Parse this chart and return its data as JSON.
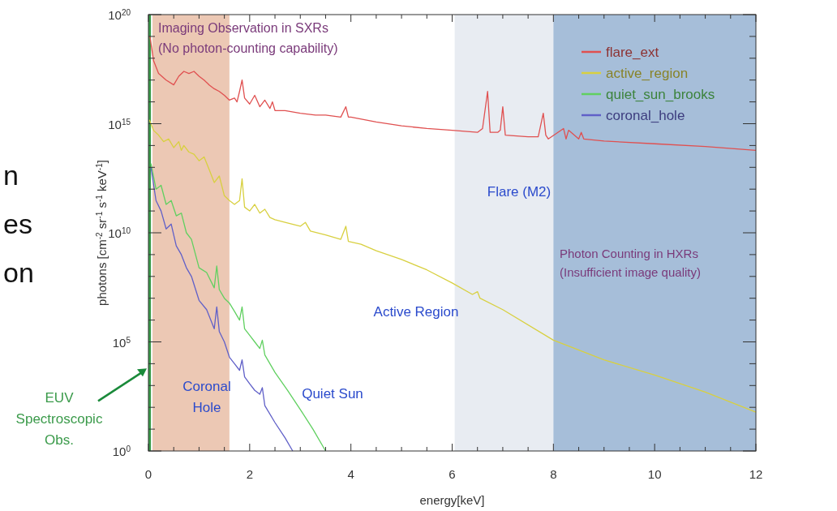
{
  "chart_data": {
    "type": "line",
    "xlabel": "energy[keV]",
    "ylabel": "photons [cm$^{-2}$ sr$^{-1}$ s$^{-1}$ keV$^{-1}$]",
    "log": "y",
    "xlim": [
      0,
      12
    ],
    "ylim": [
      1,
      1e+20
    ],
    "xticks": [
      0,
      {
        "value": 0.5,
        "label": null
      },
      2,
      {
        "value": 2.5,
        "label": null
      },
      {
        "value": 1,
        "label": null
      },
      {
        "value": 1.5,
        "label": null
      },
      {
        "value": 3,
        "label": null
      },
      {
        "value": 3.5,
        "label": null
      },
      4,
      {
        "value": 4.5,
        "label": null
      },
      {
        "value": 5,
        "label": null
      },
      {
        "value": 5.5,
        "label": null
      },
      6,
      {
        "value": 6.5,
        "label": null
      },
      {
        "value": 7,
        "label": null
      },
      {
        "value": 7.5,
        "label": null
      },
      8,
      {
        "value": 8.5,
        "label": null
      },
      {
        "value": 9,
        "label": null
      },
      {
        "value": 9.5,
        "label": null
      },
      10,
      {
        "value": 10.5,
        "label": null
      },
      {
        "value": 11,
        "label": null
      },
      {
        "value": 11.5,
        "label": null
      },
      12
    ],
    "yticks": [
      {
        "value": 1,
        "label": "10$^{0}$"
      },
      {
        "value": 10,
        "label": null
      },
      {
        "value": 100,
        "label": null
      },
      {
        "value": 1000,
        "label": null
      },
      {
        "value": 10000,
        "label": null
      },
      {
        "value": 100000.0,
        "label": "10$^{5}$"
      },
      {
        "value": 1000000.0,
        "label": null
      },
      {
        "value": 10000000.0,
        "label": null
      },
      {
        "value": 100000000.0,
        "label": null
      },
      {
        "value": 1000000000.0,
        "label": null
      },
      {
        "value": 10000000000.0,
        "label": "10$^{10}$"
      },
      {
        "value": 100000000000.0,
        "label": null
      },
      {
        "value": 1000000000000.0,
        "label": null
      },
      {
        "value": 10000000000000.0,
        "label": null
      },
      {
        "value": 100000000000000.0,
        "label": null
      },
      {
        "value": 1000000000000000.0,
        "label": "10$^{15}$"
      },
      {
        "value": 1e+16,
        "label": null
      },
      {
        "value": 1e+17,
        "label": null
      },
      {
        "value": 1e+18,
        "label": null
      },
      {
        "value": 1e+19,
        "label": null
      },
      {
        "value": 1e+20,
        "label": "10$^{20}$"
      }
    ],
    "grid": false,
    "legend": "top right",
    "marker": "none",
    "line_style": "solid",
    "bands": [
      {
        "axis": "x",
        "from": 0,
        "to": 0.05,
        "color": "#3a9a4a"
      },
      {
        "axis": "x",
        "from": 0.08,
        "to": 1.6,
        "color": "#ecc8b4"
      },
      {
        "axis": "x",
        "from": 6.05,
        "to": 8,
        "color": "#e8ecf2"
      },
      {
        "axis": "x",
        "from": 8,
        "to": 12,
        "color": "#a6bed9"
      }
    ],
    "series": [
      {
        "name": "flare_ext",
        "color": "#e05050",
        "x": [
          0.03,
          0.1,
          0.2,
          0.35,
          0.5,
          0.6,
          0.7,
          0.8,
          0.9,
          1.0,
          1.1,
          1.2,
          1.3,
          1.4,
          1.5,
          1.6,
          1.7,
          1.75,
          1.8,
          1.85,
          1.9,
          2.0,
          2.1,
          2.2,
          2.3,
          2.4,
          2.45,
          2.5,
          2.7,
          3.0,
          3.3,
          3.5,
          3.8,
          3.9,
          3.95,
          4.0,
          4.5,
          5.0,
          5.5,
          6.0,
          6.5,
          6.6,
          6.7,
          6.75,
          6.9,
          6.95,
          7.0,
          7.05,
          7.5,
          7.7,
          7.8,
          7.85,
          7.9,
          8.2,
          8.25,
          8.3,
          8.5,
          8.55,
          8.6,
          9.0,
          10.0,
          11.0,
          12.0
        ],
        "values": [
          1e+19,
          8e+17,
          2e+17,
          1e+17,
          6e+16,
          1.5e+17,
          2.5e+17,
          2e+17,
          2.5e+17,
          1.5e+17,
          1e+17,
          6e+16,
          4e+16,
          3e+16,
          2e+16,
          1.2e+16,
          1.5e+16,
          1e+16,
          3e+16,
          1e+17,
          1.5e+16,
          8000000000000000.0,
          2e+16,
          6000000000000000.0,
          1.2e+16,
          5000000000000000.0,
          1e+16,
          4000000000000000.0,
          4000000000000000.0,
          3000000000000000.0,
          2500000000000000.0,
          2500000000000000.0,
          2000000000000000.0,
          6000000000000000.0,
          2000000000000000.0,
          2000000000000000.0,
          1200000000000000.0,
          800000000000000.0,
          600000000000000.0,
          500000000000000.0,
          400000000000000.0,
          600000000000000.0,
          3e+16,
          400000000000000.0,
          400000000000000.0,
          500000000000000.0,
          6000000000000000.0,
          300000000000000.0,
          250000000000000.0,
          250000000000000.0,
          3000000000000000.0,
          300000000000000.0,
          200000000000000.0,
          600000000000000.0,
          200000000000000.0,
          500000000000000.0,
          200000000000000.0,
          400000000000000.0,
          200000000000000.0,
          160000000000000.0,
          120000000000000.0,
          90000000000000.0,
          60000000000000.0
        ]
      },
      {
        "name": "active_region",
        "color": "#d8d040",
        "x": [
          0.02,
          0.1,
          0.2,
          0.3,
          0.4,
          0.5,
          0.6,
          0.65,
          0.7,
          0.8,
          0.9,
          1.0,
          1.1,
          1.2,
          1.3,
          1.4,
          1.5,
          1.6,
          1.7,
          1.8,
          1.85,
          1.9,
          2.0,
          2.1,
          2.2,
          2.3,
          2.4,
          2.5,
          2.7,
          3.0,
          3.1,
          3.2,
          3.5,
          3.8,
          3.9,
          3.95,
          4.2,
          4.5,
          5.0,
          5.5,
          6.0,
          6.4,
          6.5,
          6.55,
          7.0,
          8.0,
          9.0,
          10.0,
          11.0,
          12.0
        ],
        "values": [
          1500000000000000.0,
          500000000000000.0,
          300000000000000.0,
          150000000000000.0,
          200000000000000.0,
          80000000000000.0,
          150000000000000.0,
          60000000000000.0,
          100000000000000.0,
          50000000000000.0,
          40000000000000.0,
          20000000000000.0,
          30000000000000.0,
          8000000000000.0,
          2000000000000.0,
          4000000000000.0,
          500000000000.0,
          300000000000.0,
          200000000000.0,
          300000000000.0,
          3000000000000.0,
          150000000000.0,
          100000000000.0,
          200000000000.0,
          80000000000.0,
          120000000000.0,
          50000000000.0,
          40000000000.0,
          30000000000.0,
          20000000000.0,
          30000000000.0,
          12000000000.0,
          8000000000.0,
          5000000000.0,
          20000000000.0,
          4000000000.0,
          3000000000.0,
          1500000000.0,
          600000000.0,
          200000000.0,
          50000000.0,
          15000000.0,
          20000000.0,
          10000000.0,
          3000000.0,
          120000.0,
          15000.0,
          3000.0,
          500.0,
          60.0
        ]
      },
      {
        "name": "quiet_sun_brooks",
        "color": "#60d060",
        "x": [
          0.05,
          0.15,
          0.25,
          0.35,
          0.45,
          0.55,
          0.65,
          0.75,
          0.85,
          1.0,
          1.15,
          1.3,
          1.35,
          1.4,
          1.5,
          1.6,
          1.7,
          1.8,
          1.85,
          1.9,
          2.0,
          2.1,
          2.2,
          2.25,
          2.3,
          2.5,
          2.75,
          3.0,
          3.25,
          3.5
        ],
        "values": [
          15000000000000.0,
          1000000000000.0,
          1500000000000.0,
          200000000000.0,
          300000000000.0,
          60000000000.0,
          80000000000.0,
          10000000000.0,
          5000000000.0,
          250000000.0,
          150000000.0,
          30000000.0,
          300000000.0,
          25000000.0,
          10000000.0,
          6000000.0,
          2500000.0,
          1000000.0,
          4000000.0,
          400000.0,
          200000.0,
          100000.0,
          50000.0,
          120000.0,
          25000.0,
          4000.0,
          600.0,
          80.0,
          10.0,
          1
        ]
      },
      {
        "name": "coronal_hole",
        "color": "#6060c8",
        "x": [
          0.05,
          0.15,
          0.25,
          0.35,
          0.45,
          0.55,
          0.65,
          0.75,
          0.85,
          1.0,
          1.15,
          1.3,
          1.35,
          1.4,
          1.5,
          1.6,
          1.7,
          1.8,
          1.85,
          1.9,
          2.0,
          2.1,
          2.2,
          2.25,
          2.3,
          2.5,
          2.7,
          2.85
        ],
        "values": [
          10000000000000.0,
          300000000000.0,
          100000000000.0,
          15000000000.0,
          25000000000.0,
          2500000000.0,
          1000000000.0,
          250000000.0,
          100000000.0,
          8000000.0,
          3000000.0,
          400000.0,
          4000000.0,
          300000.0,
          100000.0,
          20000.0,
          10000.0,
          5000.0,
          15000.0,
          2500.0,
          1200.0,
          600.0,
          400.0,
          800.0,
          120.0,
          20.0,
          4,
          1
        ]
      }
    ],
    "annotations": [
      "Imaging Observation in SXRs\n(No photon-counting capability)",
      "Flare (M2)",
      "Active Region",
      "Coronal\nHole",
      "Quiet Sun",
      "Photon Counting in HXRs\n(Insufficient image quality)",
      {
        "text": "EUV\nSpectroscopic\nObs.",
        "x": 0,
        "y": 6000
      },
      "n",
      "es",
      "on"
    ]
  }
}
